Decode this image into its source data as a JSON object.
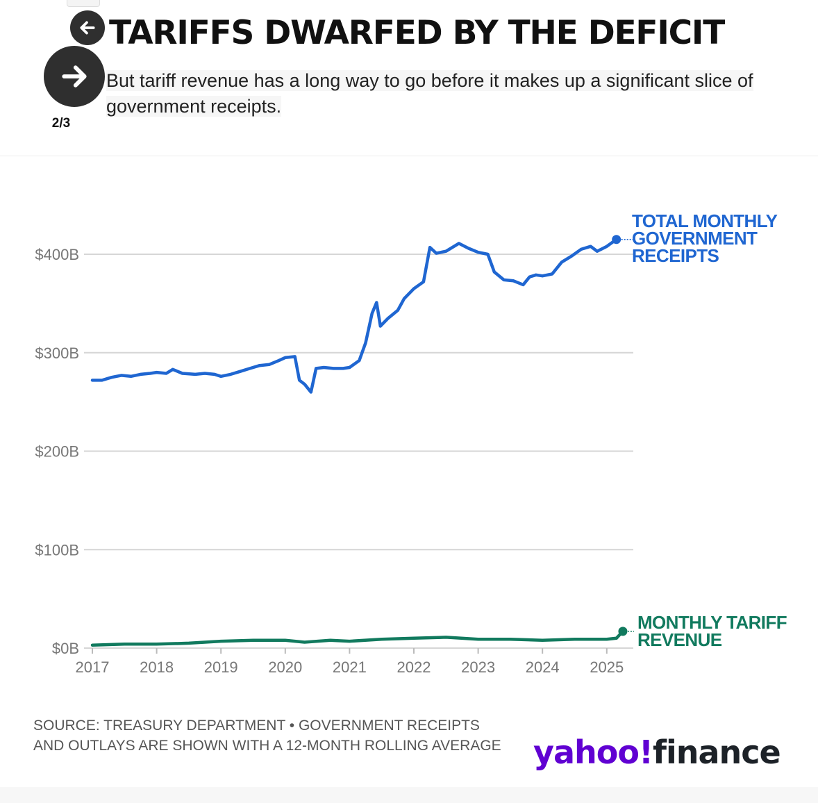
{
  "header": {
    "title": "TARIFFS DWARFED BY THE DEFICIT",
    "subtitle": "But tariff revenue has a long way to go before it makes up a significant slice of government receipts.",
    "slide_counter": "2/3",
    "prev_icon": "arrow-left-icon",
    "next_icon": "arrow-right-icon"
  },
  "footer": {
    "source": "SOURCE: TREASURY DEPARTMENT • GOVERNMENT RECEIPTS AND OUTLAYS ARE SHOWN WITH A 12-MONTH ROLLING AVERAGE",
    "logo_yahoo": "yahoo!",
    "logo_finance": "finance"
  },
  "colors": {
    "receipts": "#1f66d1",
    "tariffs": "#117a5e",
    "grid": "#d6d6d6",
    "axis_text": "#777777"
  },
  "chart_data": {
    "type": "line",
    "x_unit": "year",
    "xlim": [
      2017,
      2025.4
    ],
    "ylim": [
      0,
      420
    ],
    "y_ticks": [
      0,
      100,
      200,
      300,
      400
    ],
    "y_tick_labels": [
      "$0B",
      "$100B",
      "$200B",
      "$300B",
      "$400B"
    ],
    "x_ticks": [
      2017,
      2018,
      2019,
      2020,
      2021,
      2022,
      2023,
      2024,
      2025
    ],
    "x_tick_labels": [
      "2017",
      "2018",
      "2019",
      "2020",
      "2021",
      "2022",
      "2023",
      "2024",
      "2025"
    ],
    "grid": true,
    "series": [
      {
        "name": "TOTAL MONTHLY GOVERNMENT RECEIPTS",
        "label_lines": [
          "TOTAL MONTHLY",
          "GOVERNMENT",
          "RECEIPTS"
        ],
        "points": [
          [
            2017.0,
            272
          ],
          [
            2017.15,
            272
          ],
          [
            2017.3,
            275
          ],
          [
            2017.45,
            277
          ],
          [
            2017.6,
            276
          ],
          [
            2017.75,
            278
          ],
          [
            2017.9,
            279
          ],
          [
            2018.0,
            280
          ],
          [
            2018.15,
            279
          ],
          [
            2018.25,
            283
          ],
          [
            2018.4,
            279
          ],
          [
            2018.6,
            278
          ],
          [
            2018.75,
            279
          ],
          [
            2018.9,
            278
          ],
          [
            2019.0,
            276
          ],
          [
            2019.15,
            278
          ],
          [
            2019.3,
            281
          ],
          [
            2019.45,
            284
          ],
          [
            2019.6,
            287
          ],
          [
            2019.75,
            288
          ],
          [
            2019.9,
            292
          ],
          [
            2020.0,
            295
          ],
          [
            2020.15,
            296
          ],
          [
            2020.22,
            272
          ],
          [
            2020.3,
            268
          ],
          [
            2020.4,
            260
          ],
          [
            2020.48,
            284
          ],
          [
            2020.6,
            285
          ],
          [
            2020.75,
            284
          ],
          [
            2020.9,
            284
          ],
          [
            2021.0,
            285
          ],
          [
            2021.15,
            292
          ],
          [
            2021.25,
            310
          ],
          [
            2021.35,
            340
          ],
          [
            2021.42,
            351
          ],
          [
            2021.48,
            327
          ],
          [
            2021.6,
            335
          ],
          [
            2021.75,
            343
          ],
          [
            2021.85,
            355
          ],
          [
            2022.0,
            365
          ],
          [
            2022.15,
            372
          ],
          [
            2022.25,
            407
          ],
          [
            2022.35,
            401
          ],
          [
            2022.5,
            403
          ],
          [
            2022.7,
            411
          ],
          [
            2022.85,
            406
          ],
          [
            2023.0,
            402
          ],
          [
            2023.15,
            400
          ],
          [
            2023.25,
            382
          ],
          [
            2023.4,
            374
          ],
          [
            2023.55,
            373
          ],
          [
            2023.7,
            369
          ],
          [
            2023.8,
            377
          ],
          [
            2023.9,
            379
          ],
          [
            2024.0,
            378
          ],
          [
            2024.15,
            380
          ],
          [
            2024.3,
            392
          ],
          [
            2024.45,
            398
          ],
          [
            2024.6,
            405
          ],
          [
            2024.75,
            408
          ],
          [
            2024.85,
            403
          ],
          [
            2025.0,
            408
          ],
          [
            2025.15,
            415
          ]
        ]
      },
      {
        "name": "MONTHLY TARIFF REVENUE",
        "label_lines": [
          "MONTHLY TARIFF",
          "REVENUE"
        ],
        "points": [
          [
            2017.0,
            3
          ],
          [
            2017.5,
            4
          ],
          [
            2018.0,
            4
          ],
          [
            2018.5,
            5
          ],
          [
            2019.0,
            7
          ],
          [
            2019.5,
            8
          ],
          [
            2020.0,
            8
          ],
          [
            2020.3,
            6
          ],
          [
            2020.7,
            8
          ],
          [
            2021.0,
            7
          ],
          [
            2021.5,
            9
          ],
          [
            2022.0,
            10
          ],
          [
            2022.5,
            11
          ],
          [
            2023.0,
            9
          ],
          [
            2023.5,
            9
          ],
          [
            2024.0,
            8
          ],
          [
            2024.5,
            9
          ],
          [
            2025.0,
            9
          ],
          [
            2025.15,
            10
          ],
          [
            2025.25,
            17
          ]
        ]
      }
    ]
  }
}
